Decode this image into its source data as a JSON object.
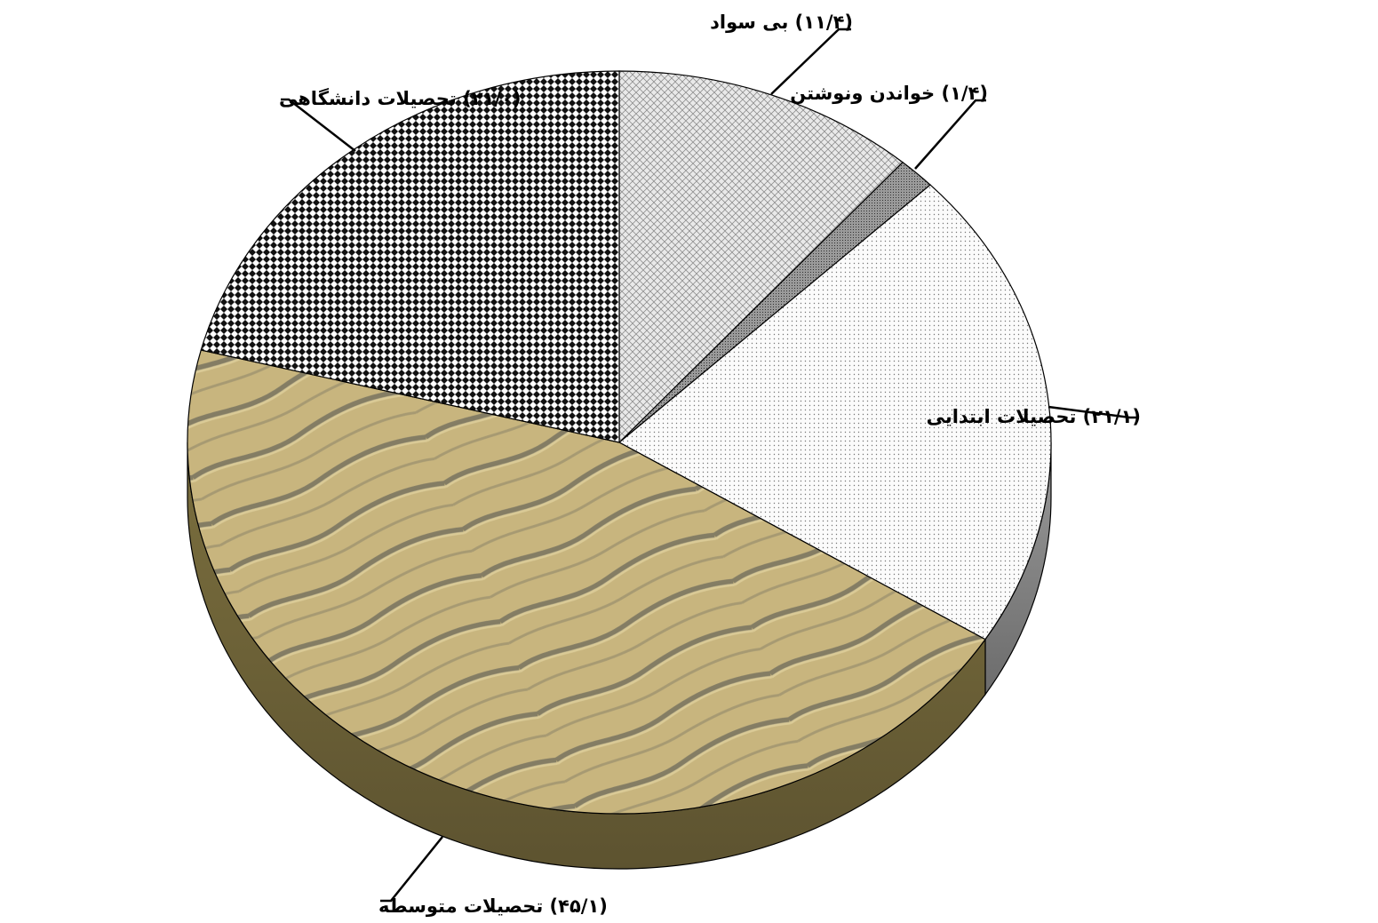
{
  "chart_data": {
    "type": "pie",
    "title": "",
    "slices": [
      {
        "label": "بی سواد",
        "value": 11.4,
        "display_value": "(۱۱/۴)",
        "pattern": "weave",
        "color": "#cfcfcf"
      },
      {
        "label": "خواندن ونوشتن",
        "value": 1.4,
        "display_value": "(۱/۴)",
        "pattern": "dark-dots",
        "color": "#8a8a8a"
      },
      {
        "label": "تحصیلات ابتدایی",
        "value": 21.1,
        "display_value": "(۲۱/۱)",
        "pattern": "fine-dots",
        "color": "#f4f4f4"
      },
      {
        "label": "تحصیلات متوسطه",
        "value": 45.1,
        "display_value": "(۴۵/۱)",
        "pattern": "sand-texture",
        "color": "#c7b27a"
      },
      {
        "label": "تحصیلات دانشگاهی",
        "value": 21.0,
        "display_value": "(۲۱/۰)",
        "pattern": "checker",
        "color": "#1e1e1e"
      }
    ],
    "start_position": "12 o'clock",
    "direction": "clockwise",
    "style": "3d-tilted",
    "legend": "none"
  }
}
